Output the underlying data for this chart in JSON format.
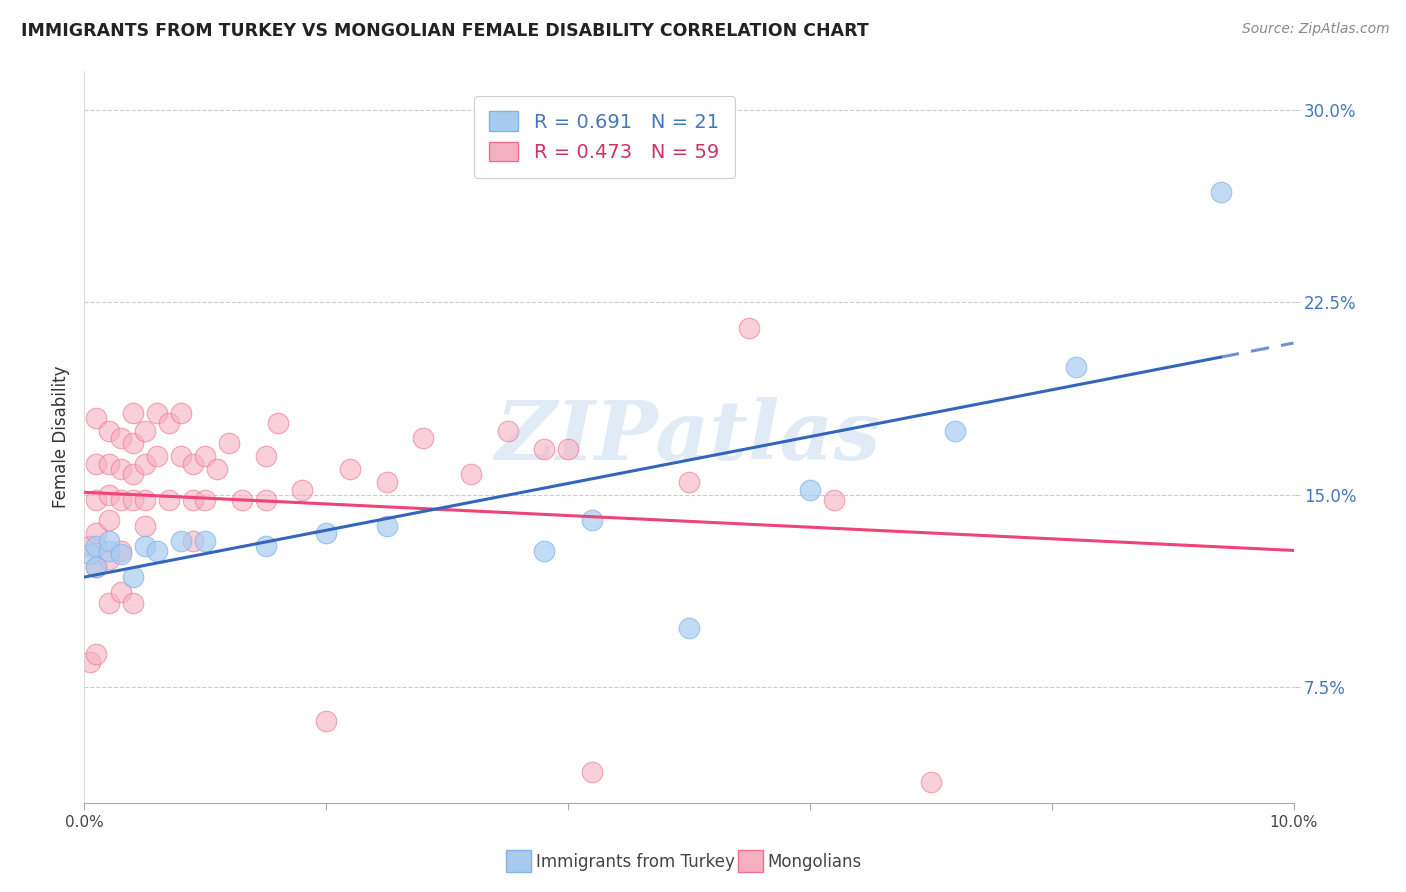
{
  "title": "IMMIGRANTS FROM TURKEY VS MONGOLIAN FEMALE DISABILITY CORRELATION CHART",
  "source": "Source: ZipAtlas.com",
  "ylabel": "Female Disability",
  "ytick_labels": [
    "7.5%",
    "15.0%",
    "22.5%",
    "30.0%"
  ],
  "ytick_values": [
    0.075,
    0.15,
    0.225,
    0.3
  ],
  "xlim": [
    0.0,
    0.1
  ],
  "ylim": [
    0.03,
    0.315
  ],
  "legend_blue_R": "R = 0.691",
  "legend_blue_N": "N = 21",
  "legend_pink_R": "R = 0.473",
  "legend_pink_N": "N = 59",
  "blue_color": "#7EB3E8",
  "blue_face_color": "#A8CCF0",
  "pink_color": "#F07090",
  "pink_face_color": "#F5B0C0",
  "blue_line_color": "#3366BB",
  "pink_line_color": "#EE4477",
  "watermark_text": "ZIPatlas",
  "watermark_color": "#C5D8EE",
  "blue_scatter_x": [
    0.0005,
    0.001,
    0.001,
    0.002,
    0.002,
    0.003,
    0.004,
    0.005,
    0.006,
    0.008,
    0.01,
    0.015,
    0.02,
    0.025,
    0.038,
    0.042,
    0.05,
    0.06,
    0.072,
    0.082,
    0.094
  ],
  "blue_scatter_y": [
    0.127,
    0.13,
    0.122,
    0.128,
    0.132,
    0.127,
    0.118,
    0.13,
    0.128,
    0.132,
    0.132,
    0.13,
    0.135,
    0.138,
    0.128,
    0.14,
    0.098,
    0.152,
    0.175,
    0.2,
    0.268
  ],
  "pink_scatter_x": [
    0.0005,
    0.0005,
    0.001,
    0.001,
    0.001,
    0.001,
    0.001,
    0.001,
    0.002,
    0.002,
    0.002,
    0.002,
    0.002,
    0.002,
    0.003,
    0.003,
    0.003,
    0.003,
    0.003,
    0.004,
    0.004,
    0.004,
    0.004,
    0.004,
    0.005,
    0.005,
    0.005,
    0.005,
    0.006,
    0.006,
    0.007,
    0.007,
    0.008,
    0.008,
    0.009,
    0.009,
    0.009,
    0.01,
    0.01,
    0.011,
    0.012,
    0.013,
    0.015,
    0.015,
    0.016,
    0.018,
    0.02,
    0.022,
    0.025,
    0.028,
    0.032,
    0.035,
    0.038,
    0.04,
    0.042,
    0.05,
    0.055,
    0.062,
    0.07
  ],
  "pink_scatter_y": [
    0.13,
    0.085,
    0.18,
    0.162,
    0.148,
    0.135,
    0.122,
    0.088,
    0.175,
    0.162,
    0.15,
    0.14,
    0.125,
    0.108,
    0.172,
    0.16,
    0.148,
    0.128,
    0.112,
    0.182,
    0.17,
    0.158,
    0.148,
    0.108,
    0.175,
    0.162,
    0.148,
    0.138,
    0.182,
    0.165,
    0.178,
    0.148,
    0.182,
    0.165,
    0.162,
    0.148,
    0.132,
    0.165,
    0.148,
    0.16,
    0.17,
    0.148,
    0.165,
    0.148,
    0.178,
    0.152,
    0.062,
    0.16,
    0.155,
    0.172,
    0.158,
    0.175,
    0.168,
    0.168,
    0.042,
    0.155,
    0.215,
    0.148,
    0.038
  ]
}
